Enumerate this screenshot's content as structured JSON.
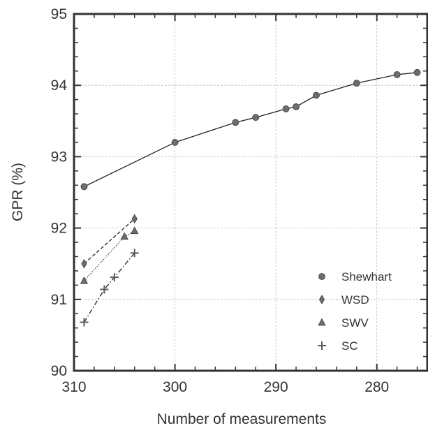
{
  "chart_data": {
    "type": "line",
    "xlabel": "Number of measurements",
    "ylabel": "GPR (%)",
    "xlim": [
      310,
      275
    ],
    "ylim": [
      90,
      95
    ],
    "x_reversed": true,
    "grid": true,
    "legend_position": "bottom-right",
    "x_ticks": [
      310,
      300,
      290,
      280
    ],
    "x_tick_labels": [
      "310",
      "300",
      "290",
      "280"
    ],
    "y_ticks": [
      90,
      91,
      92,
      93,
      94,
      95
    ],
    "y_tick_labels": [
      "90",
      "91",
      "92",
      "93",
      "94",
      "95"
    ],
    "series": [
      {
        "name": "Shewhart",
        "marker": "circle",
        "line": "solid",
        "x": [
          309,
          300,
          294,
          292,
          289,
          288,
          286,
          282,
          278,
          276
        ],
        "y": [
          92.58,
          93.2,
          93.48,
          93.55,
          93.67,
          93.7,
          93.86,
          94.03,
          94.15,
          94.18
        ]
      },
      {
        "name": "WSD",
        "marker": "diamond",
        "line": "dashed",
        "x": [
          309,
          304
        ],
        "y": [
          91.5,
          92.13
        ]
      },
      {
        "name": "SWV",
        "marker": "triangle",
        "line": "dotted",
        "x": [
          309,
          305,
          304
        ],
        "y": [
          91.26,
          91.88,
          91.96
        ]
      },
      {
        "name": "SC",
        "marker": "plus",
        "line": "dashdot",
        "x": [
          309,
          307,
          306,
          304
        ],
        "y": [
          90.68,
          91.14,
          91.31,
          91.65
        ]
      }
    ]
  }
}
